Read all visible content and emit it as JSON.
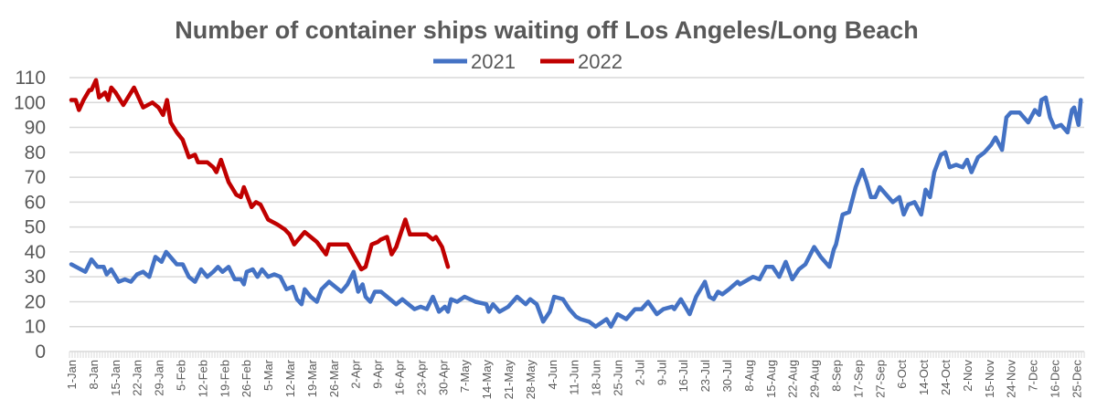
{
  "chart_data": {
    "type": "line",
    "title": "Number of container ships waiting off Los Angeles/Long Beach",
    "xlabel": "",
    "ylabel": "",
    "ylim": [
      0,
      110
    ],
    "yticks": [
      0,
      10,
      20,
      30,
      40,
      50,
      60,
      70,
      80,
      90,
      100,
      110
    ],
    "grid": true,
    "legend_position": "top-center",
    "categories": [
      "1-Jan",
      "8-Jan",
      "15-Jan",
      "22-Jan",
      "29-Jan",
      "5-Feb",
      "12-Feb",
      "19-Feb",
      "26-Feb",
      "5-Mar",
      "12-Mar",
      "19-Mar",
      "26-Mar",
      "2-Apr",
      "9-Apr",
      "16-Apr",
      "23-Apr",
      "30-Apr",
      "7-May",
      "14-May",
      "21-May",
      "28-May",
      "4-Jun",
      "11-Jun",
      "18-Jun",
      "25-Jun",
      "2-Jul",
      "9-Jul",
      "16-Jul",
      "23-Jul",
      "30-Jul",
      "8-Aug",
      "15-Aug",
      "22-Aug",
      "29-Aug",
      "8-Sep",
      "17-Sep",
      "27-Sep",
      "6-Oct",
      "14-Oct",
      "24-Oct",
      "2-Nov",
      "15-Nov",
      "24-Nov",
      "7-Dec",
      "16-Dec",
      "25-Dec"
    ],
    "x_note": "x values are positions in category-label units (0 = 1-Jan)",
    "series": [
      {
        "name": "2021",
        "color": "#4472C4",
        "points": [
          [
            0,
            35
          ],
          [
            0.64,
            32
          ],
          [
            0.92,
            37
          ],
          [
            1.2,
            34
          ],
          [
            1.48,
            34
          ],
          [
            1.62,
            31
          ],
          [
            1.83,
            33
          ],
          [
            2.17,
            28
          ],
          [
            2.45,
            29
          ],
          [
            2.73,
            28
          ],
          [
            3.01,
            31
          ],
          [
            3.29,
            32
          ],
          [
            3.57,
            30
          ],
          [
            3.85,
            38
          ],
          [
            4.13,
            36
          ],
          [
            4.34,
            40
          ],
          [
            4.83,
            35
          ],
          [
            5.1,
            35
          ],
          [
            5.38,
            30
          ],
          [
            5.66,
            28
          ],
          [
            5.94,
            33
          ],
          [
            6.22,
            30
          ],
          [
            6.5,
            32
          ],
          [
            6.71,
            34
          ],
          [
            6.92,
            32
          ],
          [
            7.2,
            34
          ],
          [
            7.48,
            29
          ],
          [
            7.76,
            29
          ],
          [
            7.9,
            27
          ],
          [
            8.03,
            32
          ],
          [
            8.31,
            33
          ],
          [
            8.52,
            30
          ],
          [
            8.73,
            33
          ],
          [
            9.01,
            30
          ],
          [
            9.29,
            31
          ],
          [
            9.57,
            30
          ],
          [
            9.85,
            25
          ],
          [
            10.13,
            26
          ],
          [
            10.33,
            21
          ],
          [
            10.54,
            19
          ],
          [
            10.68,
            25
          ],
          [
            10.96,
            22
          ],
          [
            11.24,
            20
          ],
          [
            11.45,
            25
          ],
          [
            11.8,
            28
          ],
          [
            12.08,
            26
          ],
          [
            12.36,
            24
          ],
          [
            12.64,
            27
          ],
          [
            12.92,
            32
          ],
          [
            13.13,
            24
          ],
          [
            13.33,
            27
          ],
          [
            13.47,
            22
          ],
          [
            13.68,
            20
          ],
          [
            13.89,
            24
          ],
          [
            14.17,
            24
          ],
          [
            14.45,
            22
          ],
          [
            14.87,
            19
          ],
          [
            15.15,
            21
          ],
          [
            15.43,
            19
          ],
          [
            15.71,
            17
          ],
          [
            15.99,
            18
          ],
          [
            16.27,
            17
          ],
          [
            16.55,
            22
          ],
          [
            16.83,
            16
          ],
          [
            17.1,
            18
          ],
          [
            17.24,
            16
          ],
          [
            17.38,
            21
          ],
          [
            17.66,
            20
          ],
          [
            18,
            22
          ],
          [
            18.5,
            20
          ],
          [
            19.0,
            19
          ],
          [
            19.1,
            16
          ],
          [
            19.3,
            19
          ],
          [
            19.6,
            16
          ],
          [
            20.0,
            18
          ],
          [
            20.4,
            22
          ],
          [
            20.8,
            19
          ],
          [
            21.0,
            21
          ],
          [
            21.3,
            19
          ],
          [
            21.6,
            12
          ],
          [
            21.9,
            16
          ],
          [
            22.1,
            22
          ],
          [
            22.5,
            21
          ],
          [
            22.8,
            17
          ],
          [
            23.1,
            14
          ],
          [
            23.3,
            13
          ],
          [
            23.7,
            12
          ],
          [
            24.0,
            10
          ],
          [
            24.5,
            13
          ],
          [
            24.7,
            10
          ],
          [
            25.0,
            15
          ],
          [
            25.4,
            13
          ],
          [
            25.8,
            17
          ],
          [
            26.1,
            17
          ],
          [
            26.4,
            20
          ],
          [
            26.8,
            15
          ],
          [
            27.1,
            17
          ],
          [
            27.5,
            18
          ],
          [
            27.6,
            17
          ],
          [
            27.9,
            21
          ],
          [
            28.3,
            15
          ],
          [
            28.6,
            22
          ],
          [
            29.0,
            28
          ],
          [
            29.2,
            22
          ],
          [
            29.4,
            21
          ],
          [
            29.6,
            24
          ],
          [
            29.8,
            23
          ],
          [
            30.1,
            25
          ],
          [
            30.5,
            28
          ],
          [
            30.6,
            27
          ],
          [
            31.0,
            29
          ],
          [
            31.2,
            30
          ],
          [
            31.5,
            29
          ],
          [
            31.8,
            34
          ],
          [
            32.1,
            34
          ],
          [
            32.4,
            30
          ],
          [
            32.7,
            36
          ],
          [
            33.0,
            29
          ],
          [
            33.3,
            33
          ],
          [
            33.6,
            35
          ],
          [
            34.0,
            42
          ],
          [
            34.3,
            38
          ],
          [
            34.7,
            34
          ],
          [
            34.9,
            41
          ],
          [
            35.0,
            43
          ],
          [
            35.3,
            55
          ],
          [
            35.6,
            56
          ],
          [
            35.9,
            66
          ],
          [
            36.2,
            73
          ],
          [
            36.4,
            68
          ],
          [
            36.6,
            62
          ],
          [
            36.8,
            62
          ],
          [
            37.0,
            66
          ],
          [
            37.6,
            60
          ],
          [
            37.9,
            62
          ],
          [
            38.1,
            55
          ],
          [
            38.3,
            59
          ],
          [
            38.6,
            60
          ],
          [
            38.9,
            55
          ],
          [
            39.1,
            65
          ],
          [
            39.3,
            62
          ],
          [
            39.5,
            72
          ],
          [
            39.8,
            79
          ],
          [
            40.0,
            80
          ],
          [
            40.2,
            74
          ],
          [
            40.5,
            75
          ],
          [
            40.8,
            74
          ],
          [
            41.0,
            77
          ],
          [
            41.2,
            72
          ],
          [
            41.5,
            78
          ],
          [
            41.8,
            80
          ],
          [
            42.1,
            83
          ],
          [
            42.3,
            86
          ],
          [
            42.6,
            81
          ],
          [
            42.8,
            94
          ],
          [
            43.0,
            96
          ],
          [
            43.4,
            96
          ],
          [
            43.8,
            92
          ],
          [
            44.1,
            97
          ],
          [
            44.3,
            95
          ],
          [
            44.4,
            101
          ],
          [
            44.6,
            102
          ],
          [
            44.8,
            94
          ],
          [
            45.0,
            90
          ],
          [
            45.3,
            91
          ],
          [
            45.6,
            88
          ],
          [
            45.8,
            97
          ],
          [
            45.9,
            98
          ],
          [
            46.1,
            91
          ],
          [
            46.2,
            101
          ]
        ]
      },
      {
        "name": "2022",
        "color": "#C00000",
        "points": [
          [
            0,
            101
          ],
          [
            0.2,
            101
          ],
          [
            0.35,
            97
          ],
          [
            0.56,
            101
          ],
          [
            0.83,
            105
          ],
          [
            0.92,
            105
          ],
          [
            1.13,
            109
          ],
          [
            1.27,
            102
          ],
          [
            1.55,
            104
          ],
          [
            1.69,
            101
          ],
          [
            1.83,
            106
          ],
          [
            2.03,
            104
          ],
          [
            2.38,
            99
          ],
          [
            2.87,
            106
          ],
          [
            3.29,
            98
          ],
          [
            3.71,
            100
          ],
          [
            3.99,
            98
          ],
          [
            4.2,
            95
          ],
          [
            4.38,
            101
          ],
          [
            4.55,
            92
          ],
          [
            4.83,
            88
          ],
          [
            5.1,
            85
          ],
          [
            5.38,
            78
          ],
          [
            5.66,
            79
          ],
          [
            5.8,
            76
          ],
          [
            6.22,
            76
          ],
          [
            6.5,
            74
          ],
          [
            6.64,
            72
          ],
          [
            6.85,
            77
          ],
          [
            7.2,
            68
          ],
          [
            7.55,
            63
          ],
          [
            7.76,
            62
          ],
          [
            7.9,
            66
          ],
          [
            8.25,
            58
          ],
          [
            8.45,
            60
          ],
          [
            8.66,
            59
          ],
          [
            9.01,
            53
          ],
          [
            9.43,
            51
          ],
          [
            9.78,
            49
          ],
          [
            9.99,
            47
          ],
          [
            10.2,
            43
          ],
          [
            10.68,
            48
          ],
          [
            11.24,
            44
          ],
          [
            11.66,
            39
          ],
          [
            11.8,
            43
          ],
          [
            12.64,
            43
          ],
          [
            13.27,
            33
          ],
          [
            13.47,
            34
          ],
          [
            13.75,
            43
          ],
          [
            14.03,
            44
          ],
          [
            14.17,
            45
          ],
          [
            14.45,
            46
          ],
          [
            14.66,
            39
          ],
          [
            14.87,
            42
          ],
          [
            15.29,
            53
          ],
          [
            15.5,
            47
          ],
          [
            16.27,
            47
          ],
          [
            16.55,
            45
          ],
          [
            16.69,
            46
          ],
          [
            16.97,
            42
          ],
          [
            17.24,
            34
          ]
        ]
      }
    ]
  }
}
